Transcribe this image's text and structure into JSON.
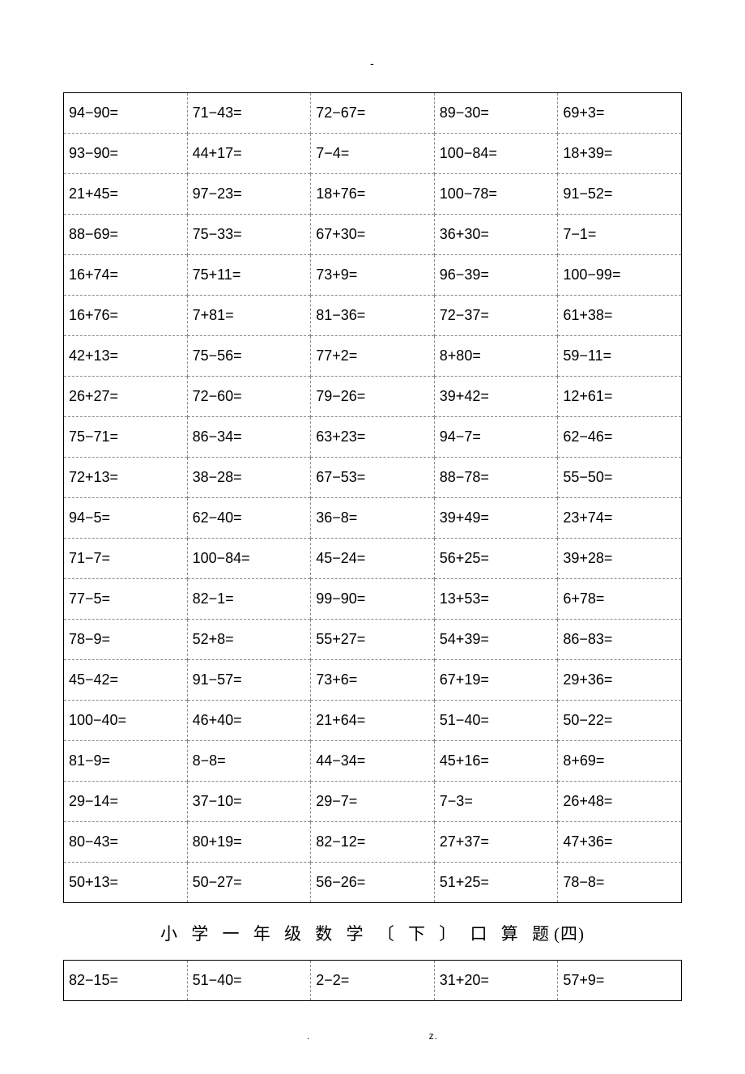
{
  "top_mark": "-",
  "table1": {
    "columns": 5,
    "rows": [
      [
        "94−90=",
        "71−43=",
        "72−67=",
        "89−30=",
        "69+3="
      ],
      [
        "93−90=",
        "44+17=",
        "7−4=",
        "100−84=",
        "18+39="
      ],
      [
        "21+45=",
        "97−23=",
        "18+76=",
        "100−78=",
        "91−52="
      ],
      [
        "88−69=",
        "75−33=",
        "67+30=",
        "36+30=",
        "7−1="
      ],
      [
        "16+74=",
        "75+11=",
        "73+9=",
        "96−39=",
        "100−99="
      ],
      [
        "16+76=",
        "7+81=",
        "81−36=",
        "72−37=",
        "61+38="
      ],
      [
        "42+13=",
        "75−56=",
        "77+2=",
        "8+80=",
        "59−11="
      ],
      [
        "26+27=",
        "72−60=",
        "79−26=",
        "39+42=",
        "12+61="
      ],
      [
        "75−71=",
        "86−34=",
        "63+23=",
        "94−7=",
        "62−46="
      ],
      [
        "72+13=",
        "38−28=",
        "67−53=",
        "88−78=",
        "55−50="
      ],
      [
        "94−5=",
        "62−40=",
        "36−8=",
        "39+49=",
        "23+74="
      ],
      [
        "71−7=",
        "100−84=",
        "45−24=",
        "56+25=",
        "39+28="
      ],
      [
        "77−5=",
        "82−1=",
        "99−90=",
        "13+53=",
        "6+78="
      ],
      [
        "78−9=",
        "52+8=",
        "55+27=",
        "54+39=",
        "86−83="
      ],
      [
        "45−42=",
        "91−57=",
        "73+6=",
        "67+19=",
        "29+36="
      ],
      [
        "100−40=",
        "46+40=",
        "21+64=",
        "51−40=",
        "50−22="
      ],
      [
        "81−9=",
        "8−8=",
        "44−34=",
        "45+16=",
        "8+69="
      ],
      [
        "29−14=",
        "37−10=",
        "29−7=",
        "7−3=",
        "26+48="
      ],
      [
        "80−43=",
        "80+19=",
        "82−12=",
        "27+37=",
        "47+36="
      ],
      [
        "50+13=",
        "50−27=",
        "56−26=",
        "51+25=",
        "78−8="
      ]
    ],
    "cell_font_size": 18,
    "border_color_outer": "#000000",
    "border_color_inner": "#888888",
    "text_color": "#000000"
  },
  "section_title": "小 学 一 年 级 数 学 〔 下 〕 口 算 题",
  "section_title_suffix": "(四)",
  "table2": {
    "columns": 5,
    "rows": [
      [
        "82−15=",
        "51−40=",
        "2−2=",
        "31+20=",
        "57+9="
      ]
    ],
    "cell_font_size": 18,
    "border_color_outer": "#000000",
    "border_color_inner": "#888888",
    "text_color": "#000000"
  },
  "footer_left": ".",
  "footer_right": "z.",
  "colors": {
    "background": "#ffffff",
    "text": "#000000"
  },
  "typography": {
    "cell_font_family": "Arial",
    "title_font_family": "SimSun",
    "title_font_size": 21,
    "cell_font_size": 18,
    "footer_font_size": 12
  }
}
